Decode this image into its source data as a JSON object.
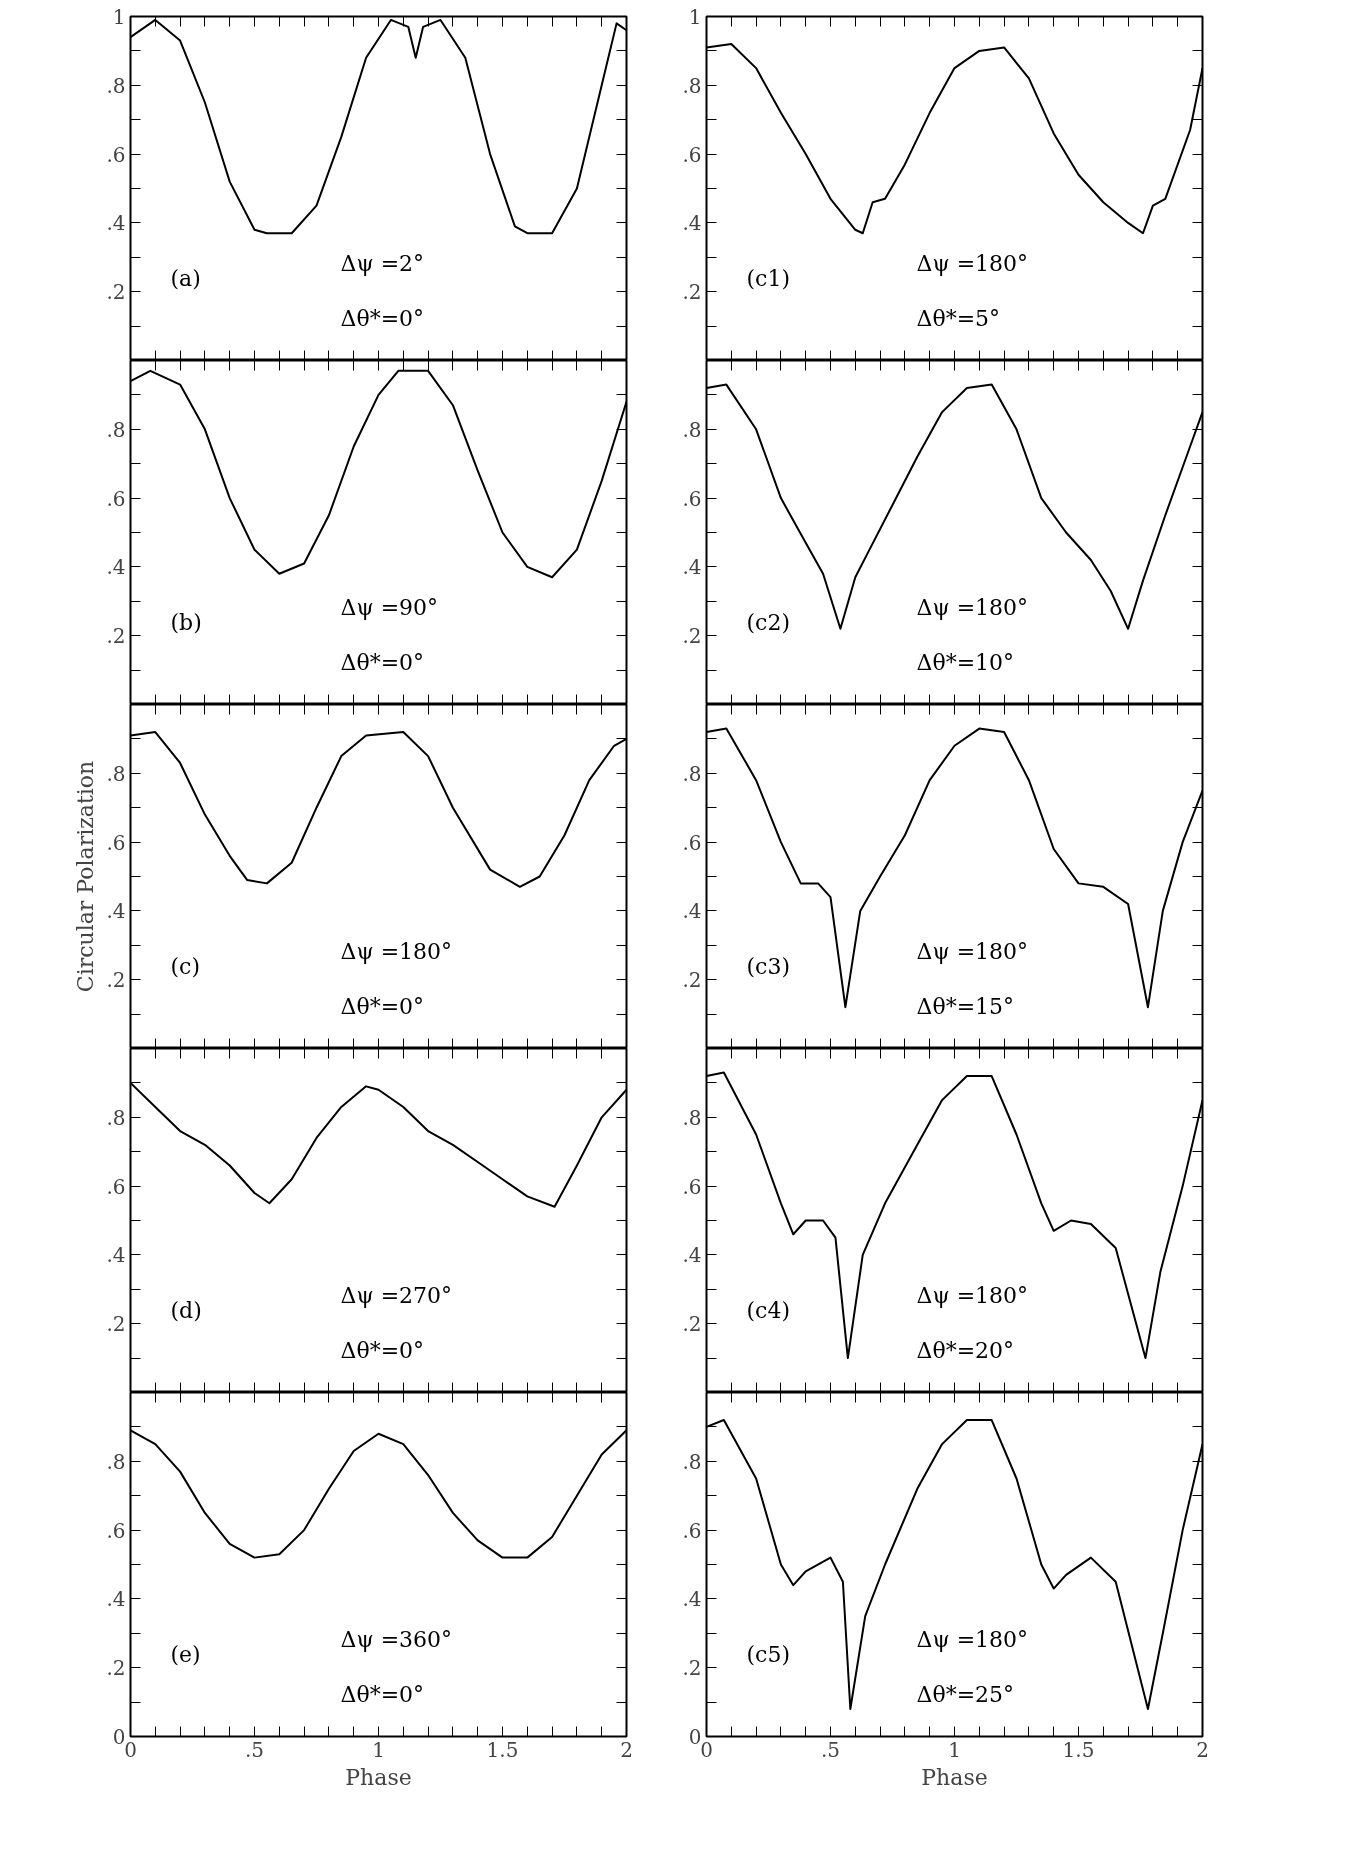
{
  "chart_data": [
    {
      "type": "line",
      "color": "#000000",
      "annotations": [
        "(a)",
        "Δψ =2°",
        "Δθ*=0°"
      ],
      "xlim": [
        0,
        2
      ],
      "ylim": [
        0,
        1
      ],
      "tick_labels": "y",
      "xticks": [
        {
          "value": 0,
          "label": null
        },
        {
          "value": 0.1,
          "label": null
        },
        {
          "value": 0.2,
          "label": null
        },
        {
          "value": 0.3,
          "label": null
        },
        {
          "value": 0.4,
          "label": null
        },
        {
          "value": 0.5,
          "label": null
        },
        {
          "value": 0.6,
          "label": null
        },
        {
          "value": 0.7,
          "label": null
        },
        {
          "value": 0.8,
          "label": null
        },
        {
          "value": 0.9,
          "label": null
        },
        {
          "value": 1,
          "label": null
        },
        {
          "value": 1.1,
          "label": null
        },
        {
          "value": 1.2,
          "label": null
        },
        {
          "value": 1.3,
          "label": null
        },
        {
          "value": 1.4,
          "label": null
        },
        {
          "value": 1.5,
          "label": null
        },
        {
          "value": 1.6,
          "label": null
        },
        {
          "value": 1.7,
          "label": null
        },
        {
          "value": 1.8,
          "label": null
        },
        {
          "value": 1.9,
          "label": null
        },
        {
          "value": 2,
          "label": null
        }
      ],
      "yticks": [
        {
          "value": 0,
          "label": null
        },
        {
          "value": 0.1,
          "label": null
        },
        {
          "value": 0.2,
          "label": ".2"
        },
        {
          "value": 0.3,
          "label": null
        },
        {
          "value": 0.4,
          "label": ".4"
        },
        {
          "value": 0.5,
          "label": null
        },
        {
          "value": 0.6,
          "label": ".6"
        },
        {
          "value": 0.7,
          "label": null
        },
        {
          "value": 0.8,
          "label": ".8"
        },
        {
          "value": 0.9,
          "label": null
        },
        {
          "value": 1,
          "label": "1"
        }
      ],
      "x": [
        0,
        0.1,
        0.2,
        0.3,
        0.4,
        0.5,
        0.55,
        0.65,
        0.75,
        0.85,
        0.95,
        1.05,
        1.12,
        1.15,
        1.18,
        1.25,
        1.35,
        1.45,
        1.55,
        1.6,
        1.7,
        1.8,
        1.9,
        1.96,
        2.0
      ],
      "values": [
        0.94,
        0.99,
        0.93,
        0.75,
        0.52,
        0.38,
        0.37,
        0.37,
        0.45,
        0.65,
        0.88,
        0.99,
        0.97,
        0.88,
        0.97,
        0.99,
        0.88,
        0.6,
        0.39,
        0.37,
        0.37,
        0.5,
        0.8,
        0.98,
        0.96
      ]
    },
    {
      "type": "line",
      "color": "#000000",
      "annotations": [
        "(b)",
        "Δψ =90°",
        "Δθ*=0°"
      ],
      "xlim": [
        0,
        2
      ],
      "ylim": [
        0,
        1
      ],
      "tick_labels": "y",
      "xticks": [
        {
          "value": 0,
          "label": null
        },
        {
          "value": 0.1,
          "label": null
        },
        {
          "value": 0.2,
          "label": null
        },
        {
          "value": 0.3,
          "label": null
        },
        {
          "value": 0.4,
          "label": null
        },
        {
          "value": 0.5,
          "label": null
        },
        {
          "value": 0.6,
          "label": null
        },
        {
          "value": 0.7,
          "label": null
        },
        {
          "value": 0.8,
          "label": null
        },
        {
          "value": 0.9,
          "label": null
        },
        {
          "value": 1,
          "label": null
        },
        {
          "value": 1.1,
          "label": null
        },
        {
          "value": 1.2,
          "label": null
        },
        {
          "value": 1.3,
          "label": null
        },
        {
          "value": 1.4,
          "label": null
        },
        {
          "value": 1.5,
          "label": null
        },
        {
          "value": 1.6,
          "label": null
        },
        {
          "value": 1.7,
          "label": null
        },
        {
          "value": 1.8,
          "label": null
        },
        {
          "value": 1.9,
          "label": null
        },
        {
          "value": 2,
          "label": null
        }
      ],
      "yticks": [
        {
          "value": 0,
          "label": null
        },
        {
          "value": 0.1,
          "label": null
        },
        {
          "value": 0.2,
          "label": ".2"
        },
        {
          "value": 0.3,
          "label": null
        },
        {
          "value": 0.4,
          "label": ".4"
        },
        {
          "value": 0.5,
          "label": null
        },
        {
          "value": 0.6,
          "label": ".6"
        },
        {
          "value": 0.7,
          "label": null
        },
        {
          "value": 0.8,
          "label": ".8"
        },
        {
          "value": 0.9,
          "label": null
        },
        {
          "value": 1,
          "label": null
        }
      ],
      "x": [
        0,
        0.08,
        0.2,
        0.3,
        0.4,
        0.5,
        0.6,
        0.7,
        0.8,
        0.9,
        1.0,
        1.08,
        1.2,
        1.3,
        1.4,
        1.5,
        1.6,
        1.7,
        1.8,
        1.9,
        2.0
      ],
      "values": [
        0.94,
        0.97,
        0.93,
        0.8,
        0.6,
        0.45,
        0.38,
        0.41,
        0.55,
        0.75,
        0.9,
        0.97,
        0.97,
        0.87,
        0.68,
        0.5,
        0.4,
        0.37,
        0.45,
        0.65,
        0.88
      ]
    },
    {
      "type": "line",
      "color": "#000000",
      "annotations": [
        "(c)",
        "Δψ =180°",
        "Δθ*=0°"
      ],
      "xlim": [
        0,
        2
      ],
      "ylim": [
        0,
        1
      ],
      "tick_labels": "y",
      "ylabel": "Circular Polarization",
      "xticks": [
        {
          "value": 0,
          "label": null
        },
        {
          "value": 0.1,
          "label": null
        },
        {
          "value": 0.2,
          "label": null
        },
        {
          "value": 0.3,
          "label": null
        },
        {
          "value": 0.4,
          "label": null
        },
        {
          "value": 0.5,
          "label": null
        },
        {
          "value": 0.6,
          "label": null
        },
        {
          "value": 0.7,
          "label": null
        },
        {
          "value": 0.8,
          "label": null
        },
        {
          "value": 0.9,
          "label": null
        },
        {
          "value": 1,
          "label": null
        },
        {
          "value": 1.1,
          "label": null
        },
        {
          "value": 1.2,
          "label": null
        },
        {
          "value": 1.3,
          "label": null
        },
        {
          "value": 1.4,
          "label": null
        },
        {
          "value": 1.5,
          "label": null
        },
        {
          "value": 1.6,
          "label": null
        },
        {
          "value": 1.7,
          "label": null
        },
        {
          "value": 1.8,
          "label": null
        },
        {
          "value": 1.9,
          "label": null
        },
        {
          "value": 2,
          "label": null
        }
      ],
      "yticks": [
        {
          "value": 0,
          "label": null
        },
        {
          "value": 0.1,
          "label": null
        },
        {
          "value": 0.2,
          "label": ".2"
        },
        {
          "value": 0.3,
          "label": null
        },
        {
          "value": 0.4,
          "label": ".4"
        },
        {
          "value": 0.5,
          "label": null
        },
        {
          "value": 0.6,
          "label": ".6"
        },
        {
          "value": 0.7,
          "label": null
        },
        {
          "value": 0.8,
          "label": ".8"
        },
        {
          "value": 0.9,
          "label": null
        },
        {
          "value": 1,
          "label": null
        }
      ],
      "x": [
        0,
        0.1,
        0.2,
        0.3,
        0.4,
        0.47,
        0.55,
        0.65,
        0.75,
        0.85,
        0.95,
        1.1,
        1.2,
        1.3,
        1.45,
        1.57,
        1.65,
        1.75,
        1.85,
        1.95,
        2.0
      ],
      "values": [
        0.91,
        0.92,
        0.83,
        0.68,
        0.56,
        0.49,
        0.48,
        0.54,
        0.7,
        0.85,
        0.91,
        0.92,
        0.85,
        0.7,
        0.52,
        0.47,
        0.5,
        0.62,
        0.78,
        0.88,
        0.9
      ]
    },
    {
      "type": "line",
      "color": "#000000",
      "annotations": [
        "(d)",
        "Δψ =270°",
        "Δθ*=0°"
      ],
      "xlim": [
        0,
        2
      ],
      "ylim": [
        0,
        1
      ],
      "tick_labels": "y",
      "xticks": [
        {
          "value": 0,
          "label": null
        },
        {
          "value": 0.1,
          "label": null
        },
        {
          "value": 0.2,
          "label": null
        },
        {
          "value": 0.3,
          "label": null
        },
        {
          "value": 0.4,
          "label": null
        },
        {
          "value": 0.5,
          "label": null
        },
        {
          "value": 0.6,
          "label": null
        },
        {
          "value": 0.7,
          "label": null
        },
        {
          "value": 0.8,
          "label": null
        },
        {
          "value": 0.9,
          "label": null
        },
        {
          "value": 1,
          "label": null
        },
        {
          "value": 1.1,
          "label": null
        },
        {
          "value": 1.2,
          "label": null
        },
        {
          "value": 1.3,
          "label": null
        },
        {
          "value": 1.4,
          "label": null
        },
        {
          "value": 1.5,
          "label": null
        },
        {
          "value": 1.6,
          "label": null
        },
        {
          "value": 1.7,
          "label": null
        },
        {
          "value": 1.8,
          "label": null
        },
        {
          "value": 1.9,
          "label": null
        },
        {
          "value": 2,
          "label": null
        }
      ],
      "yticks": [
        {
          "value": 0,
          "label": null
        },
        {
          "value": 0.1,
          "label": null
        },
        {
          "value": 0.2,
          "label": ".2"
        },
        {
          "value": 0.3,
          "label": null
        },
        {
          "value": 0.4,
          "label": ".4"
        },
        {
          "value": 0.5,
          "label": null
        },
        {
          "value": 0.6,
          "label": ".6"
        },
        {
          "value": 0.7,
          "label": null
        },
        {
          "value": 0.8,
          "label": ".8"
        },
        {
          "value": 0.9,
          "label": null
        },
        {
          "value": 1,
          "label": null
        }
      ],
      "x": [
        0,
        0.1,
        0.2,
        0.3,
        0.4,
        0.5,
        0.56,
        0.65,
        0.75,
        0.85,
        0.95,
        1.0,
        1.1,
        1.2,
        1.3,
        1.4,
        1.5,
        1.6,
        1.71,
        1.8,
        1.9,
        2.0
      ],
      "values": [
        0.9,
        0.83,
        0.76,
        0.72,
        0.66,
        0.58,
        0.55,
        0.62,
        0.74,
        0.83,
        0.89,
        0.88,
        0.83,
        0.76,
        0.72,
        0.67,
        0.62,
        0.57,
        0.54,
        0.66,
        0.8,
        0.88
      ]
    },
    {
      "type": "line",
      "color": "#000000",
      "annotations": [
        "(e)",
        "Δψ =360°",
        "Δθ*=0°"
      ],
      "xlim": [
        0,
        2
      ],
      "ylim": [
        0,
        1
      ],
      "xlabel": "Phase",
      "xticks": [
        {
          "value": 0,
          "label": "0"
        },
        {
          "value": 0.1,
          "label": null
        },
        {
          "value": 0.2,
          "label": null
        },
        {
          "value": 0.3,
          "label": null
        },
        {
          "value": 0.4,
          "label": null
        },
        {
          "value": 0.5,
          "label": ".5"
        },
        {
          "value": 0.6,
          "label": null
        },
        {
          "value": 0.7,
          "label": null
        },
        {
          "value": 0.8,
          "label": null
        },
        {
          "value": 0.9,
          "label": null
        },
        {
          "value": 1,
          "label": "1"
        },
        {
          "value": 1.1,
          "label": null
        },
        {
          "value": 1.2,
          "label": null
        },
        {
          "value": 1.3,
          "label": null
        },
        {
          "value": 1.4,
          "label": null
        },
        {
          "value": 1.5,
          "label": "1.5"
        },
        {
          "value": 1.6,
          "label": null
        },
        {
          "value": 1.7,
          "label": null
        },
        {
          "value": 1.8,
          "label": null
        },
        {
          "value": 1.9,
          "label": null
        },
        {
          "value": 2,
          "label": "2"
        }
      ],
      "yticks": [
        {
          "value": 0,
          "label": "0"
        },
        {
          "value": 0.1,
          "label": null
        },
        {
          "value": 0.2,
          "label": ".2"
        },
        {
          "value": 0.3,
          "label": null
        },
        {
          "value": 0.4,
          "label": ".4"
        },
        {
          "value": 0.5,
          "label": null
        },
        {
          "value": 0.6,
          "label": ".6"
        },
        {
          "value": 0.7,
          "label": null
        },
        {
          "value": 0.8,
          "label": ".8"
        },
        {
          "value": 0.9,
          "label": null
        },
        {
          "value": 1,
          "label": null
        }
      ],
      "x": [
        0,
        0.1,
        0.2,
        0.3,
        0.4,
        0.5,
        0.6,
        0.7,
        0.8,
        0.9,
        1.0,
        1.1,
        1.2,
        1.3,
        1.4,
        1.5,
        1.6,
        1.7,
        1.8,
        1.9,
        2.0
      ],
      "values": [
        0.89,
        0.85,
        0.77,
        0.65,
        0.56,
        0.52,
        0.53,
        0.6,
        0.72,
        0.83,
        0.88,
        0.85,
        0.76,
        0.65,
        0.57,
        0.52,
        0.52,
        0.58,
        0.7,
        0.82,
        0.89
      ]
    },
    {
      "type": "line",
      "color": "#000000",
      "annotations": [
        "(c1)",
        "Δψ =180°",
        "Δθ*=5°"
      ],
      "xlim": [
        0,
        2
      ],
      "ylim": [
        0,
        1
      ],
      "tick_labels": "y",
      "xticks": [
        {
          "value": 0,
          "label": null
        },
        {
          "value": 0.1,
          "label": null
        },
        {
          "value": 0.2,
          "label": null
        },
        {
          "value": 0.3,
          "label": null
        },
        {
          "value": 0.4,
          "label": null
        },
        {
          "value": 0.5,
          "label": null
        },
        {
          "value": 0.6,
          "label": null
        },
        {
          "value": 0.7,
          "label": null
        },
        {
          "value": 0.8,
          "label": null
        },
        {
          "value": 0.9,
          "label": null
        },
        {
          "value": 1,
          "label": null
        },
        {
          "value": 1.1,
          "label": null
        },
        {
          "value": 1.2,
          "label": null
        },
        {
          "value": 1.3,
          "label": null
        },
        {
          "value": 1.4,
          "label": null
        },
        {
          "value": 1.5,
          "label": null
        },
        {
          "value": 1.6,
          "label": null
        },
        {
          "value": 1.7,
          "label": null
        },
        {
          "value": 1.8,
          "label": null
        },
        {
          "value": 1.9,
          "label": null
        },
        {
          "value": 2,
          "label": null
        }
      ],
      "yticks": [
        {
          "value": 0,
          "label": null
        },
        {
          "value": 0.1,
          "label": null
        },
        {
          "value": 0.2,
          "label": ".2"
        },
        {
          "value": 0.3,
          "label": null
        },
        {
          "value": 0.4,
          "label": ".4"
        },
        {
          "value": 0.5,
          "label": null
        },
        {
          "value": 0.6,
          "label": ".6"
        },
        {
          "value": 0.7,
          "label": null
        },
        {
          "value": 0.8,
          "label": ".8"
        },
        {
          "value": 0.9,
          "label": null
        },
        {
          "value": 1,
          "label": "1"
        }
      ],
      "x": [
        0,
        0.1,
        0.2,
        0.3,
        0.4,
        0.5,
        0.6,
        0.63,
        0.67,
        0.72,
        0.8,
        0.9,
        1.0,
        1.1,
        1.2,
        1.3,
        1.4,
        1.5,
        1.6,
        1.7,
        1.76,
        1.8,
        1.85,
        1.95,
        2.0
      ],
      "values": [
        0.91,
        0.92,
        0.85,
        0.72,
        0.6,
        0.47,
        0.38,
        0.37,
        0.46,
        0.47,
        0.57,
        0.72,
        0.85,
        0.9,
        0.91,
        0.82,
        0.66,
        0.54,
        0.46,
        0.4,
        0.37,
        0.45,
        0.47,
        0.67,
        0.85
      ]
    },
    {
      "type": "line",
      "color": "#000000",
      "annotations": [
        "(c2)",
        "Δψ =180°",
        "Δθ*=10°"
      ],
      "xlim": [
        0,
        2
      ],
      "ylim": [
        0,
        1
      ],
      "tick_labels": "y",
      "xticks": [
        {
          "value": 0,
          "label": null
        },
        {
          "value": 0.1,
          "label": null
        },
        {
          "value": 0.2,
          "label": null
        },
        {
          "value": 0.3,
          "label": null
        },
        {
          "value": 0.4,
          "label": null
        },
        {
          "value": 0.5,
          "label": null
        },
        {
          "value": 0.6,
          "label": null
        },
        {
          "value": 0.7,
          "label": null
        },
        {
          "value": 0.8,
          "label": null
        },
        {
          "value": 0.9,
          "label": null
        },
        {
          "value": 1,
          "label": null
        },
        {
          "value": 1.1,
          "label": null
        },
        {
          "value": 1.2,
          "label": null
        },
        {
          "value": 1.3,
          "label": null
        },
        {
          "value": 1.4,
          "label": null
        },
        {
          "value": 1.5,
          "label": null
        },
        {
          "value": 1.6,
          "label": null
        },
        {
          "value": 1.7,
          "label": null
        },
        {
          "value": 1.8,
          "label": null
        },
        {
          "value": 1.9,
          "label": null
        },
        {
          "value": 2,
          "label": null
        }
      ],
      "yticks": [
        {
          "value": 0,
          "label": null
        },
        {
          "value": 0.1,
          "label": null
        },
        {
          "value": 0.2,
          "label": ".2"
        },
        {
          "value": 0.3,
          "label": null
        },
        {
          "value": 0.4,
          "label": ".4"
        },
        {
          "value": 0.5,
          "label": null
        },
        {
          "value": 0.6,
          "label": ".6"
        },
        {
          "value": 0.7,
          "label": null
        },
        {
          "value": 0.8,
          "label": ".8"
        },
        {
          "value": 0.9,
          "label": null
        },
        {
          "value": 1,
          "label": null
        }
      ],
      "x": [
        0,
        0.08,
        0.2,
        0.3,
        0.4,
        0.47,
        0.54,
        0.6,
        0.65,
        0.75,
        0.85,
        0.95,
        1.05,
        1.15,
        1.25,
        1.35,
        1.45,
        1.55,
        1.63,
        1.7,
        1.76,
        1.85,
        1.95,
        2.0
      ],
      "values": [
        0.92,
        0.93,
        0.8,
        0.6,
        0.47,
        0.38,
        0.22,
        0.37,
        0.44,
        0.58,
        0.72,
        0.85,
        0.92,
        0.93,
        0.8,
        0.6,
        0.5,
        0.42,
        0.33,
        0.22,
        0.36,
        0.55,
        0.75,
        0.85
      ]
    },
    {
      "type": "line",
      "color": "#000000",
      "annotations": [
        "(c3)",
        "Δψ =180°",
        "Δθ*=15°"
      ],
      "xlim": [
        0,
        2
      ],
      "ylim": [
        0,
        1
      ],
      "tick_labels": "y",
      "xticks": [
        {
          "value": 0,
          "label": null
        },
        {
          "value": 0.1,
          "label": null
        },
        {
          "value": 0.2,
          "label": null
        },
        {
          "value": 0.3,
          "label": null
        },
        {
          "value": 0.4,
          "label": null
        },
        {
          "value": 0.5,
          "label": null
        },
        {
          "value": 0.6,
          "label": null
        },
        {
          "value": 0.7,
          "label": null
        },
        {
          "value": 0.8,
          "label": null
        },
        {
          "value": 0.9,
          "label": null
        },
        {
          "value": 1,
          "label": null
        },
        {
          "value": 1.1,
          "label": null
        },
        {
          "value": 1.2,
          "label": null
        },
        {
          "value": 1.3,
          "label": null
        },
        {
          "value": 1.4,
          "label": null
        },
        {
          "value": 1.5,
          "label": null
        },
        {
          "value": 1.6,
          "label": null
        },
        {
          "value": 1.7,
          "label": null
        },
        {
          "value": 1.8,
          "label": null
        },
        {
          "value": 1.9,
          "label": null
        },
        {
          "value": 2,
          "label": null
        }
      ],
      "yticks": [
        {
          "value": 0,
          "label": null
        },
        {
          "value": 0.1,
          "label": null
        },
        {
          "value": 0.2,
          "label": ".2"
        },
        {
          "value": 0.3,
          "label": null
        },
        {
          "value": 0.4,
          "label": ".4"
        },
        {
          "value": 0.5,
          "label": null
        },
        {
          "value": 0.6,
          "label": ".6"
        },
        {
          "value": 0.7,
          "label": null
        },
        {
          "value": 0.8,
          "label": ".8"
        },
        {
          "value": 0.9,
          "label": null
        },
        {
          "value": 1,
          "label": null
        }
      ],
      "x": [
        0,
        0.08,
        0.2,
        0.3,
        0.38,
        0.45,
        0.5,
        0.56,
        0.62,
        0.7,
        0.8,
        0.9,
        1.0,
        1.1,
        1.2,
        1.3,
        1.4,
        1.5,
        1.6,
        1.7,
        1.78,
        1.84,
        1.92,
        2.0
      ],
      "values": [
        0.92,
        0.93,
        0.78,
        0.6,
        0.48,
        0.48,
        0.44,
        0.12,
        0.4,
        0.5,
        0.62,
        0.78,
        0.88,
        0.93,
        0.92,
        0.78,
        0.58,
        0.48,
        0.47,
        0.42,
        0.12,
        0.4,
        0.6,
        0.75
      ]
    },
    {
      "type": "line",
      "color": "#000000",
      "annotations": [
        "(c4)",
        "Δψ =180°",
        "Δθ*=20°"
      ],
      "xlim": [
        0,
        2
      ],
      "ylim": [
        0,
        1
      ],
      "tick_labels": "y",
      "xticks": [
        {
          "value": 0,
          "label": null
        },
        {
          "value": 0.1,
          "label": null
        },
        {
          "value": 0.2,
          "label": null
        },
        {
          "value": 0.3,
          "label": null
        },
        {
          "value": 0.4,
          "label": null
        },
        {
          "value": 0.5,
          "label": null
        },
        {
          "value": 0.6,
          "label": null
        },
        {
          "value": 0.7,
          "label": null
        },
        {
          "value": 0.8,
          "label": null
        },
        {
          "value": 0.9,
          "label": null
        },
        {
          "value": 1,
          "label": null
        },
        {
          "value": 1.1,
          "label": null
        },
        {
          "value": 1.2,
          "label": null
        },
        {
          "value": 1.3,
          "label": null
        },
        {
          "value": 1.4,
          "label": null
        },
        {
          "value": 1.5,
          "label": null
        },
        {
          "value": 1.6,
          "label": null
        },
        {
          "value": 1.7,
          "label": null
        },
        {
          "value": 1.8,
          "label": null
        },
        {
          "value": 1.9,
          "label": null
        },
        {
          "value": 2,
          "label": null
        }
      ],
      "yticks": [
        {
          "value": 0,
          "label": null
        },
        {
          "value": 0.1,
          "label": null
        },
        {
          "value": 0.2,
          "label": ".2"
        },
        {
          "value": 0.3,
          "label": null
        },
        {
          "value": 0.4,
          "label": ".4"
        },
        {
          "value": 0.5,
          "label": null
        },
        {
          "value": 0.6,
          "label": ".6"
        },
        {
          "value": 0.7,
          "label": null
        },
        {
          "value": 0.8,
          "label": ".8"
        },
        {
          "value": 0.9,
          "label": null
        },
        {
          "value": 1,
          "label": null
        }
      ],
      "x": [
        0,
        0.07,
        0.2,
        0.3,
        0.35,
        0.4,
        0.47,
        0.52,
        0.57,
        0.63,
        0.72,
        0.85,
        0.95,
        1.05,
        1.15,
        1.25,
        1.35,
        1.4,
        1.47,
        1.55,
        1.65,
        1.77,
        1.83,
        1.92,
        2.0
      ],
      "values": [
        0.92,
        0.93,
        0.75,
        0.55,
        0.46,
        0.5,
        0.5,
        0.45,
        0.1,
        0.4,
        0.55,
        0.72,
        0.85,
        0.92,
        0.92,
        0.75,
        0.55,
        0.47,
        0.5,
        0.49,
        0.42,
        0.1,
        0.35,
        0.6,
        0.85
      ]
    },
    {
      "type": "line",
      "color": "#000000",
      "annotations": [
        "(c5)",
        "Δψ =180°",
        "Δθ*=25°"
      ],
      "xlim": [
        0,
        2
      ],
      "ylim": [
        0,
        1
      ],
      "xlabel": "Phase",
      "xticks": [
        {
          "value": 0,
          "label": "0"
        },
        {
          "value": 0.1,
          "label": null
        },
        {
          "value": 0.2,
          "label": null
        },
        {
          "value": 0.3,
          "label": null
        },
        {
          "value": 0.4,
          "label": null
        },
        {
          "value": 0.5,
          "label": ".5"
        },
        {
          "value": 0.6,
          "label": null
        },
        {
          "value": 0.7,
          "label": null
        },
        {
          "value": 0.8,
          "label": null
        },
        {
          "value": 0.9,
          "label": null
        },
        {
          "value": 1,
          "label": "1"
        },
        {
          "value": 1.1,
          "label": null
        },
        {
          "value": 1.2,
          "label": null
        },
        {
          "value": 1.3,
          "label": null
        },
        {
          "value": 1.4,
          "label": null
        },
        {
          "value": 1.5,
          "label": "1.5"
        },
        {
          "value": 1.6,
          "label": null
        },
        {
          "value": 1.7,
          "label": null
        },
        {
          "value": 1.8,
          "label": null
        },
        {
          "value": 1.9,
          "label": null
        },
        {
          "value": 2,
          "label": "2"
        }
      ],
      "yticks": [
        {
          "value": 0,
          "label": "0"
        },
        {
          "value": 0.1,
          "label": null
        },
        {
          "value": 0.2,
          "label": ".2"
        },
        {
          "value": 0.3,
          "label": null
        },
        {
          "value": 0.4,
          "label": ".4"
        },
        {
          "value": 0.5,
          "label": null
        },
        {
          "value": 0.6,
          "label": ".6"
        },
        {
          "value": 0.7,
          "label": null
        },
        {
          "value": 0.8,
          "label": ".8"
        },
        {
          "value": 0.9,
          "label": null
        },
        {
          "value": 1,
          "label": null
        }
      ],
      "x": [
        0,
        0.07,
        0.2,
        0.3,
        0.35,
        0.4,
        0.5,
        0.55,
        0.58,
        0.64,
        0.72,
        0.85,
        0.95,
        1.05,
        1.15,
        1.25,
        1.35,
        1.4,
        1.45,
        1.55,
        1.65,
        1.78,
        1.84,
        1.92,
        2.0
      ],
      "values": [
        0.9,
        0.92,
        0.75,
        0.5,
        0.44,
        0.48,
        0.52,
        0.45,
        0.08,
        0.35,
        0.5,
        0.72,
        0.85,
        0.92,
        0.92,
        0.75,
        0.5,
        0.43,
        0.47,
        0.52,
        0.45,
        0.08,
        0.3,
        0.6,
        0.85
      ]
    }
  ]
}
